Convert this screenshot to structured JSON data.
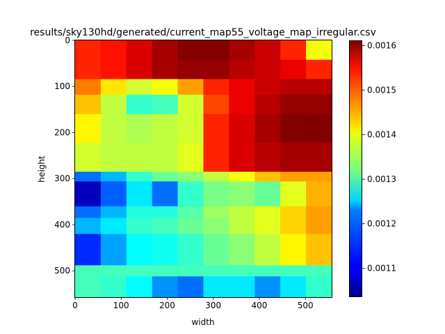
{
  "chart_data": {
    "type": "heatmap",
    "title": "results/sky130hd/generated/current_map55_voltage_map_irregular.csv",
    "xlabel": "width",
    "ylabel": "height",
    "xlim": [
      0,
      557
    ],
    "ylim": [
      557,
      0
    ],
    "y_inverted": true,
    "xticks": [
      "0",
      "100",
      "200",
      "300",
      "400",
      "500"
    ],
    "yticks": [
      "0",
      "100",
      "200",
      "300",
      "400",
      "500"
    ],
    "colormap": "jet",
    "colorbar": {
      "vmin": 0.001035,
      "vmax": 0.001612,
      "ticks": [
        "0.0011",
        "0.0012",
        "0.0013",
        "0.0014",
        "0.0015",
        "0.0016"
      ]
    },
    "grid": false,
    "grid_extent": [
      0,
      557,
      0,
      557
    ],
    "cells": [
      [
        0.00152,
        0.00153,
        0.00156,
        0.00159,
        0.00161,
        0.00161,
        0.00159,
        0.00157,
        0.00152,
        0.00139
      ],
      [
        0.00152,
        0.00153,
        0.00156,
        0.00159,
        0.0016,
        0.0016,
        0.00158,
        0.00157,
        0.00155,
        0.00152
      ],
      [
        0.00147,
        0.00141,
        0.00137,
        0.00139,
        0.00145,
        0.00152,
        0.00155,
        0.00157,
        0.00158,
        0.00158
      ],
      [
        0.00143,
        0.00136,
        0.00128,
        0.00129,
        0.00137,
        0.0015,
        0.00155,
        0.00158,
        0.0016,
        0.0016
      ],
      [
        0.0014,
        0.00136,
        0.00135,
        0.00136,
        0.00137,
        0.00152,
        0.00156,
        0.00159,
        0.00161,
        0.00162
      ],
      [
        0.00137,
        0.00136,
        0.00136,
        0.00136,
        0.00138,
        0.00152,
        0.00156,
        0.00158,
        0.00159,
        0.00159
      ],
      [
        0.00117,
        0.00121,
        0.00128,
        0.00131,
        0.00133,
        0.00136,
        0.00139,
        0.00143,
        0.00145,
        0.00145
      ],
      [
        0.00107,
        0.00116,
        0.00124,
        0.00117,
        0.00128,
        0.00132,
        0.00133,
        0.00131,
        0.00138,
        0.00144
      ],
      [
        0.00117,
        0.00121,
        0.00127,
        0.00127,
        0.0013,
        0.00134,
        0.00136,
        0.00138,
        0.00142,
        0.00145
      ],
      [
        0.00121,
        0.00124,
        0.00128,
        0.00129,
        0.00131,
        0.00133,
        0.00136,
        0.00138,
        0.00142,
        0.00145
      ],
      [
        0.00113,
        0.0012,
        0.00125,
        0.00126,
        0.00128,
        0.00131,
        0.00133,
        0.00136,
        0.0014,
        0.00143
      ],
      [
        0.00129,
        0.00129,
        0.00129,
        0.00129,
        0.00129,
        0.00129,
        0.00129,
        0.00129,
        0.00129,
        0.00129
      ],
      [
        0.00129,
        0.00128,
        0.00125,
        0.00119,
        0.00117,
        0.00124,
        0.00124,
        0.00119,
        0.00124,
        0.00128
      ]
    ],
    "cell_row_edges": [
      0,
      42,
      84,
      118,
      160,
      222,
      285,
      306,
      360,
      385,
      420,
      488,
      512,
      557
    ]
  }
}
